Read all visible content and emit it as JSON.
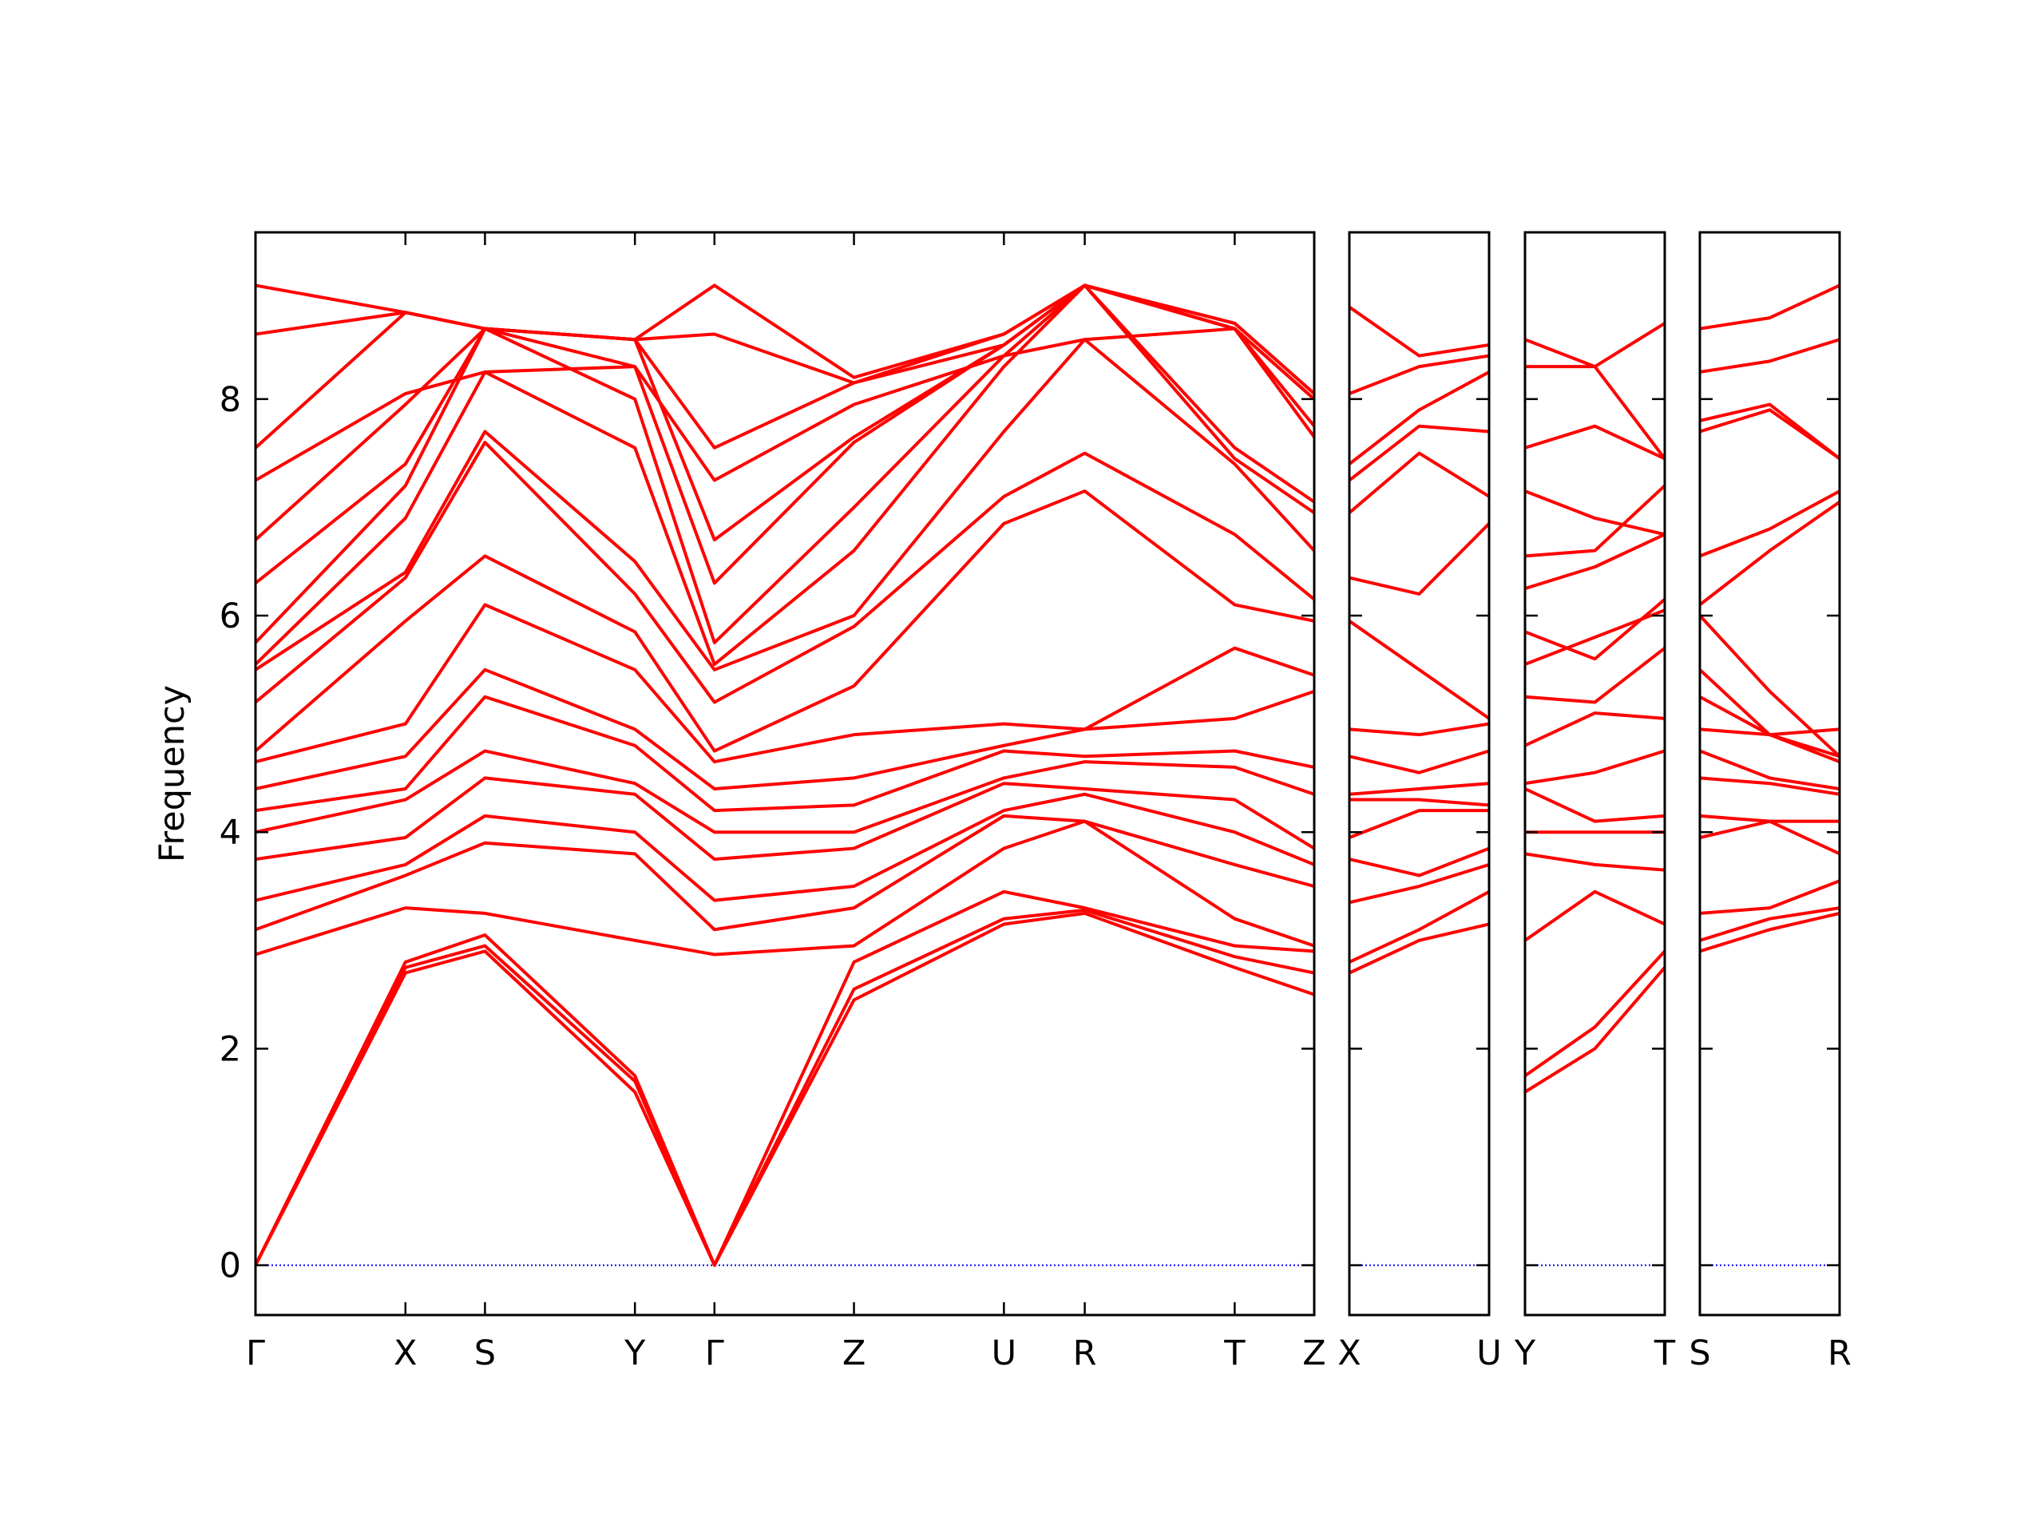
{
  "chart_data": [
    {
      "type": "line",
      "ylabel": "Frequency",
      "color": "#ff0000",
      "ytick_labels": true,
      "hline": 0,
      "hline_color": "#0000ff",
      "xlim": [
        0,
        8.12
      ],
      "ylim": [
        -0.46,
        9.54
      ],
      "yticks": [
        0,
        2,
        4,
        6,
        8
      ],
      "xticks": [
        {
          "value": 0,
          "label": "Γ"
        },
        {
          "value": 1.15,
          "label": "X"
        },
        {
          "value": 1.76,
          "label": "S"
        },
        {
          "value": 2.91,
          "label": "Y"
        },
        {
          "value": 3.52,
          "label": "Γ"
        },
        {
          "value": 4.59,
          "label": "Z"
        },
        {
          "value": 5.74,
          "label": "U"
        },
        {
          "value": 6.36,
          "label": "R"
        },
        {
          "value": 7.51,
          "label": "T"
        },
        {
          "value": 8.12,
          "label": "Z"
        }
      ],
      "x": [
        0,
        1.15,
        1.76,
        2.91,
        3.52,
        4.59,
        5.74,
        6.36,
        7.51,
        8.12
      ],
      "series": [
        {
          "values": [
            0,
            2.7,
            2.9,
            1.6,
            0,
            2.45,
            3.15,
            3.25,
            2.75,
            2.5
          ]
        },
        {
          "values": [
            0,
            2.75,
            2.95,
            1.7,
            0,
            2.55,
            3.2,
            3.28,
            2.85,
            2.7
          ]
        },
        {
          "values": [
            0,
            2.8,
            3.05,
            1.75,
            0,
            2.8,
            3.45,
            3.3,
            2.95,
            2.9
          ]
        },
        {
          "values": [
            2.87,
            3.3,
            3.25,
            3.0,
            2.87,
            2.95,
            3.85,
            4.1,
            3.2,
            2.95
          ]
        },
        {
          "values": [
            3.1,
            3.6,
            3.9,
            3.8,
            3.1,
            3.3,
            4.15,
            4.1,
            3.7,
            3.5
          ]
        },
        {
          "values": [
            3.37,
            3.7,
            4.15,
            4.0,
            3.37,
            3.5,
            4.2,
            4.35,
            4.0,
            3.7
          ]
        },
        {
          "values": [
            3.75,
            3.95,
            4.5,
            4.35,
            3.75,
            3.85,
            4.45,
            4.4,
            4.3,
            3.85
          ]
        },
        {
          "values": [
            4.0,
            4.3,
            4.75,
            4.45,
            4.0,
            4.0,
            4.5,
            4.65,
            4.6,
            4.35
          ]
        },
        {
          "values": [
            4.2,
            4.4,
            5.25,
            4.8,
            4.2,
            4.25,
            4.75,
            4.7,
            4.75,
            4.6
          ]
        },
        {
          "values": [
            4.4,
            4.7,
            5.5,
            4.95,
            4.4,
            4.5,
            4.8,
            4.95,
            5.05,
            5.3
          ]
        },
        {
          "values": [
            4.65,
            5.0,
            6.1,
            5.5,
            4.65,
            4.9,
            5.0,
            4.95,
            5.7,
            5.45
          ]
        },
        {
          "values": [
            4.75,
            5.95,
            6.55,
            5.85,
            4.75,
            5.35,
            6.85,
            7.15,
            6.1,
            5.95
          ]
        },
        {
          "values": [
            5.2,
            6.35,
            7.6,
            6.2,
            5.2,
            5.9,
            7.1,
            7.5,
            6.75,
            6.15
          ]
        },
        {
          "values": [
            5.5,
            6.4,
            7.7,
            6.5,
            5.5,
            6.0,
            7.7,
            8.55,
            7.4,
            6.6
          ]
        },
        {
          "values": [
            5.55,
            6.9,
            8.25,
            7.55,
            5.55,
            6.6,
            8.3,
            9.05,
            7.45,
            6.95
          ]
        },
        {
          "values": [
            5.75,
            7.2,
            8.65,
            8.0,
            5.75,
            7.0,
            8.4,
            9.05,
            7.55,
            7.05
          ]
        },
        {
          "values": [
            6.3,
            7.4,
            8.65,
            8.3,
            6.3,
            7.6,
            8.5,
            9.05,
            8.65,
            7.65
          ]
        },
        {
          "values": [
            6.7,
            7.95,
            8.65,
            8.55,
            6.7,
            7.65,
            8.5,
            9.05,
            8.65,
            7.75
          ]
        },
        {
          "values": [
            7.25,
            8.05,
            8.25,
            8.3,
            7.25,
            7.95,
            8.4,
            8.55,
            8.65,
            8.0
          ]
        },
        {
          "values": [
            7.55,
            8.8,
            8.65,
            8.55,
            7.55,
            8.15,
            8.5,
            9.05,
            8.65,
            8.0
          ]
        },
        {
          "values": [
            8.6,
            8.8,
            8.65,
            8.55,
            8.6,
            8.15,
            8.6,
            9.05,
            8.7,
            8.05
          ]
        },
        {
          "values": [
            9.05,
            8.8,
            8.65,
            8.55,
            9.05,
            8.2,
            8.6,
            9.05,
            8.7,
            8.05
          ]
        }
      ]
    },
    {
      "type": "line",
      "color": "#ff0000",
      "ytick_labels": false,
      "hline": 0,
      "hline_color": "#0000ff",
      "xlim": [
        0,
        1.07
      ],
      "ylim": [
        -0.46,
        9.54
      ],
      "yticks": [
        0,
        2,
        4,
        6,
        8
      ],
      "xticks": [
        {
          "value": 0,
          "label": "X"
        },
        {
          "value": 1.07,
          "label": "U"
        }
      ],
      "x": [
        0,
        0.535,
        1.07
      ],
      "series": [
        {
          "values": [
            2.7,
            3.0,
            3.15
          ]
        },
        {
          "values": [
            2.8,
            3.1,
            3.45
          ]
        },
        {
          "values": [
            3.35,
            3.5,
            3.7
          ]
        },
        {
          "values": [
            3.75,
            3.6,
            3.85
          ]
        },
        {
          "values": [
            3.95,
            4.2,
            4.2
          ]
        },
        {
          "values": [
            4.3,
            4.3,
            4.25
          ]
        },
        {
          "values": [
            4.35,
            4.4,
            4.45
          ]
        },
        {
          "values": [
            4.7,
            4.55,
            4.75
          ]
        },
        {
          "values": [
            4.95,
            4.9,
            5.0
          ]
        },
        {
          "values": [
            5.95,
            5.5,
            5.05
          ]
        },
        {
          "values": [
            6.35,
            6.2,
            6.85
          ]
        },
        {
          "values": [
            6.95,
            7.5,
            7.1
          ]
        },
        {
          "values": [
            7.25,
            7.75,
            7.7
          ]
        },
        {
          "values": [
            7.4,
            7.9,
            8.25
          ]
        },
        {
          "values": [
            8.05,
            8.3,
            8.4
          ]
        },
        {
          "values": [
            8.85,
            8.4,
            8.5
          ]
        }
      ]
    },
    {
      "type": "line",
      "color": "#ff0000",
      "ytick_labels": false,
      "hline": 0,
      "hline_color": "#0000ff",
      "xlim": [
        0,
        1.07
      ],
      "ylim": [
        -0.46,
        9.54
      ],
      "yticks": [
        0,
        2,
        4,
        6,
        8
      ],
      "xticks": [
        {
          "value": 0,
          "label": "Y"
        },
        {
          "value": 1.07,
          "label": "T"
        }
      ],
      "x": [
        0,
        0.535,
        1.07
      ],
      "series": [
        {
          "values": [
            1.6,
            2.0,
            2.75
          ]
        },
        {
          "values": [
            1.75,
            2.2,
            2.9
          ]
        },
        {
          "values": [
            3.0,
            3.45,
            3.15
          ]
        },
        {
          "values": [
            3.8,
            3.7,
            3.65
          ]
        },
        {
          "values": [
            4.0,
            4.0,
            4.0
          ]
        },
        {
          "values": [
            4.4,
            4.1,
            4.15
          ]
        },
        {
          "values": [
            4.45,
            4.55,
            4.75
          ]
        },
        {
          "values": [
            4.8,
            5.1,
            5.05
          ]
        },
        {
          "values": [
            5.25,
            5.2,
            5.7
          ]
        },
        {
          "values": [
            5.55,
            5.8,
            6.05
          ]
        },
        {
          "values": [
            5.85,
            5.6,
            6.15
          ]
        },
        {
          "values": [
            6.25,
            6.45,
            6.75
          ]
        },
        {
          "values": [
            6.55,
            6.6,
            7.2
          ]
        },
        {
          "values": [
            7.15,
            6.9,
            6.75
          ]
        },
        {
          "values": [
            7.55,
            7.75,
            7.45
          ]
        },
        {
          "values": [
            8.3,
            8.3,
            7.45
          ]
        },
        {
          "values": [
            8.55,
            8.3,
            8.7
          ]
        }
      ]
    },
    {
      "type": "line",
      "color": "#ff0000",
      "ytick_labels": false,
      "hline": 0,
      "hline_color": "#0000ff",
      "xlim": [
        0,
        1.07
      ],
      "ylim": [
        -0.46,
        9.54
      ],
      "yticks": [
        0,
        2,
        4,
        6,
        8
      ],
      "xticks": [
        {
          "value": 0,
          "label": "S"
        },
        {
          "value": 1.07,
          "label": "R"
        }
      ],
      "x": [
        0,
        0.535,
        1.07
      ],
      "series": [
        {
          "values": [
            2.9,
            3.1,
            3.25
          ]
        },
        {
          "values": [
            3.0,
            3.2,
            3.3
          ]
        },
        {
          "values": [
            3.25,
            3.3,
            3.55
          ]
        },
        {
          "values": [
            3.95,
            4.1,
            3.8
          ]
        },
        {
          "values": [
            4.15,
            4.1,
            4.1
          ]
        },
        {
          "values": [
            4.5,
            4.45,
            4.35
          ]
        },
        {
          "values": [
            4.75,
            4.5,
            4.4
          ]
        },
        {
          "values": [
            4.95,
            4.9,
            4.65
          ]
        },
        {
          "values": [
            5.25,
            4.9,
            4.7
          ]
        },
        {
          "values": [
            5.5,
            4.9,
            4.95
          ]
        },
        {
          "values": [
            6.0,
            5.3,
            4.7
          ]
        },
        {
          "values": [
            6.1,
            6.6,
            7.05
          ]
        },
        {
          "values": [
            6.55,
            6.8,
            7.15
          ]
        },
        {
          "values": [
            7.7,
            7.9,
            7.45
          ]
        },
        {
          "values": [
            7.8,
            7.95,
            7.45
          ]
        },
        {
          "values": [
            8.25,
            8.35,
            8.55
          ]
        },
        {
          "values": [
            8.65,
            8.75,
            9.05
          ]
        }
      ]
    }
  ]
}
